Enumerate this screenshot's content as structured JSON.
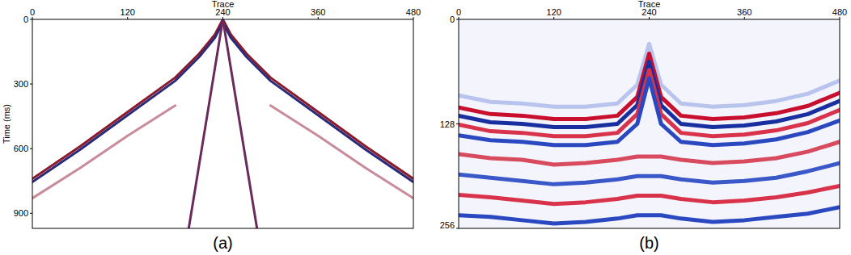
{
  "chart_data": [
    {
      "type": "line",
      "label": "(a)",
      "xlabel": "Trace",
      "ylabel": "Time (ms)",
      "xlim": [
        0,
        480
      ],
      "xticks": [
        0,
        120,
        240,
        360,
        480
      ],
      "ylim": [
        0,
        970
      ],
      "yticks": [
        0,
        300,
        600,
        900
      ],
      "series": [
        {
          "color": "#c98a9a",
          "x": [
            0,
            60,
            120,
            180
          ],
          "values": [
            830,
            690,
            540,
            400
          ]
        },
        {
          "color": "#c98a9a",
          "x": [
            300,
            360,
            420,
            480
          ],
          "values": [
            400,
            540,
            690,
            830
          ]
        },
        {
          "color": "#8b1a2b",
          "x": [
            0,
            60,
            120,
            180,
            210,
            230,
            240
          ],
          "values": [
            740,
            590,
            430,
            270,
            160,
            70,
            0
          ]
        },
        {
          "color": "#2a2a7a",
          "x": [
            0,
            60,
            120,
            180,
            210,
            230,
            240
          ],
          "values": [
            755,
            605,
            445,
            285,
            175,
            85,
            15
          ]
        },
        {
          "color": "#8b1a2b",
          "x": [
            240,
            250,
            270,
            300,
            360,
            420,
            480
          ],
          "values": [
            0,
            70,
            160,
            270,
            430,
            590,
            740
          ]
        },
        {
          "color": "#2a2a7a",
          "x": [
            240,
            250,
            270,
            300,
            360,
            420,
            480
          ],
          "values": [
            15,
            85,
            175,
            285,
            445,
            605,
            755
          ]
        },
        {
          "color": "#6a2a5a",
          "x": [
            197,
            240
          ],
          "values": [
            970,
            0
          ]
        },
        {
          "color": "#6a2a5a",
          "x": [
            240,
            283
          ],
          "values": [
            0,
            970
          ]
        }
      ]
    },
    {
      "type": "line",
      "label": "(b)",
      "xlabel": "Trace",
      "xlim": [
        0,
        480
      ],
      "xticks": [
        0,
        120,
        240,
        360,
        480
      ],
      "ylim": [
        0,
        256
      ],
      "yticks": [
        0,
        128,
        256
      ],
      "series": [
        {
          "color": "#b8c4ee",
          "x": [
            0,
            40,
            80,
            120,
            160,
            200,
            225,
            240,
            255,
            280,
            320,
            360,
            400,
            440,
            480
          ],
          "values": [
            93,
            101,
            103,
            107,
            107,
            103,
            80,
            30,
            80,
            103,
            107,
            105,
            100,
            91,
            75
          ]
        },
        {
          "color": "#c8102e",
          "x": [
            0,
            40,
            80,
            120,
            160,
            200,
            225,
            240,
            255,
            280,
            320,
            360,
            400,
            440,
            480
          ],
          "values": [
            108,
            116,
            118,
            122,
            122,
            118,
            95,
            42,
            95,
            118,
            122,
            120,
            115,
            106,
            90
          ]
        },
        {
          "color": "#1a2f9f",
          "x": [
            0,
            40,
            80,
            120,
            160,
            200,
            225,
            240,
            255,
            280,
            320,
            360,
            400,
            440,
            480
          ],
          "values": [
            118,
            126,
            128,
            132,
            132,
            128,
            105,
            52,
            105,
            128,
            132,
            130,
            125,
            116,
            100
          ]
        },
        {
          "color": "#d8334a",
          "x": [
            0,
            40,
            80,
            120,
            160,
            200,
            225,
            240,
            255,
            280,
            320,
            360,
            400,
            440,
            480
          ],
          "values": [
            129,
            137,
            139,
            143,
            143,
            139,
            116,
            62,
            116,
            139,
            143,
            141,
            136,
            127,
            111
          ]
        },
        {
          "color": "#2a48c0",
          "x": [
            0,
            40,
            80,
            120,
            160,
            200,
            225,
            240,
            255,
            280,
            320,
            360,
            400,
            440,
            480
          ],
          "values": [
            142,
            148,
            150,
            154,
            154,
            150,
            128,
            72,
            128,
            150,
            154,
            152,
            147,
            138,
            124
          ]
        },
        {
          "color": "#d84a5e",
          "x": [
            0,
            40,
            80,
            120,
            160,
            200,
            225,
            255,
            280,
            320,
            360,
            400,
            440,
            480
          ],
          "values": [
            165,
            170,
            172,
            178,
            176,
            172,
            168,
            168,
            172,
            176,
            174,
            170,
            162,
            150
          ]
        },
        {
          "color": "#3a58c8",
          "x": [
            0,
            40,
            80,
            120,
            160,
            200,
            225,
            255,
            280,
            320,
            360,
            400,
            440,
            480
          ],
          "values": [
            190,
            194,
            198,
            202,
            200,
            196,
            192,
            192,
            196,
            200,
            198,
            194,
            186,
            176
          ]
        },
        {
          "color": "#d8334a",
          "x": [
            0,
            40,
            80,
            120,
            160,
            200,
            225,
            255,
            280,
            320,
            360,
            400,
            440,
            480
          ],
          "values": [
            215,
            218,
            222,
            226,
            224,
            220,
            216,
            216,
            220,
            224,
            222,
            218,
            212,
            204
          ]
        },
        {
          "color": "#2a48c0",
          "x": [
            0,
            40,
            80,
            120,
            160,
            200,
            225,
            255,
            280,
            320,
            360,
            400,
            440,
            480
          ],
          "values": [
            240,
            242,
            246,
            250,
            248,
            244,
            240,
            240,
            244,
            248,
            246,
            242,
            238,
            230
          ]
        }
      ]
    }
  ]
}
